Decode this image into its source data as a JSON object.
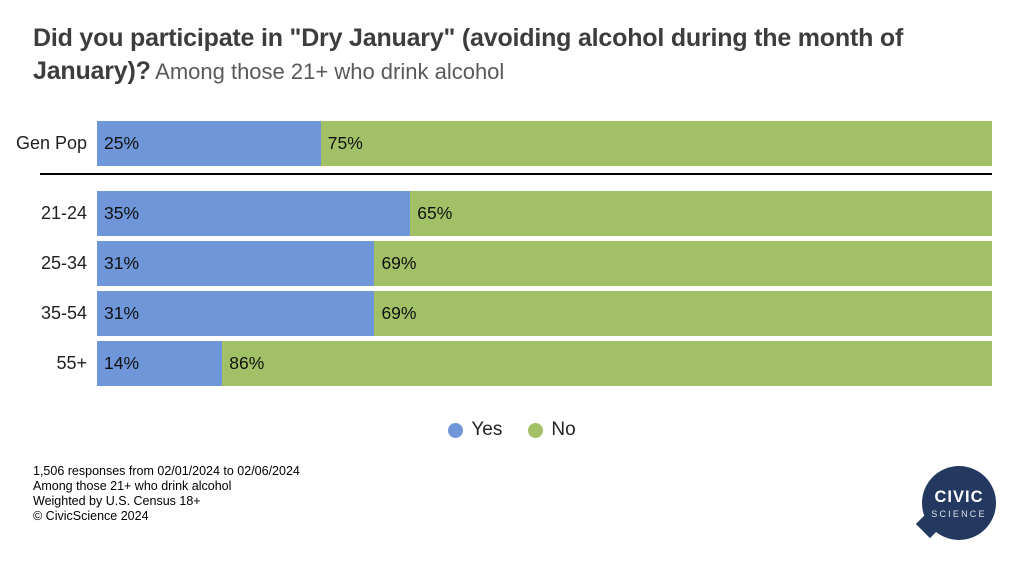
{
  "chart_data": {
    "type": "bar",
    "orientation": "horizontal",
    "stacked": true,
    "title": "Did you participate in \"Dry January\" (avoiding alcohol during the month of January)?",
    "subtitle": "Among those 21+ who drink alcohol",
    "categories": [
      "Gen Pop",
      "21-24",
      "25-34",
      "35-54",
      "55+"
    ],
    "series": [
      {
        "name": "Yes",
        "color": "#6f96d8",
        "values": [
          25,
          35,
          31,
          31,
          14
        ]
      },
      {
        "name": "No",
        "color": "#a2c167",
        "values": [
          75,
          65,
          69,
          69,
          86
        ]
      }
    ],
    "value_suffix": "%",
    "xlim": [
      0,
      100
    ],
    "legend_position": "bottom-center",
    "separator_after_index": 0
  },
  "legend": [
    {
      "label": "Yes",
      "color": "#6f96d8"
    },
    {
      "label": "No",
      "color": "#a2c167"
    }
  ],
  "footer": {
    "lines": [
      "1,506 responses from 02/01/2024 to 02/06/2024",
      "Among those 21+ who drink alcohol",
      "Weighted by U.S. Census 18+",
      "© CivicScience 2024"
    ]
  },
  "logo": {
    "line1": "CIVIC",
    "line2": "SCIENCE"
  },
  "colors": {
    "yes": "#6f96d8",
    "no": "#a2c167",
    "divider": "#000000",
    "logo_bg": "#24395f",
    "title": "#3d3d3d",
    "subtitle": "#595959"
  }
}
